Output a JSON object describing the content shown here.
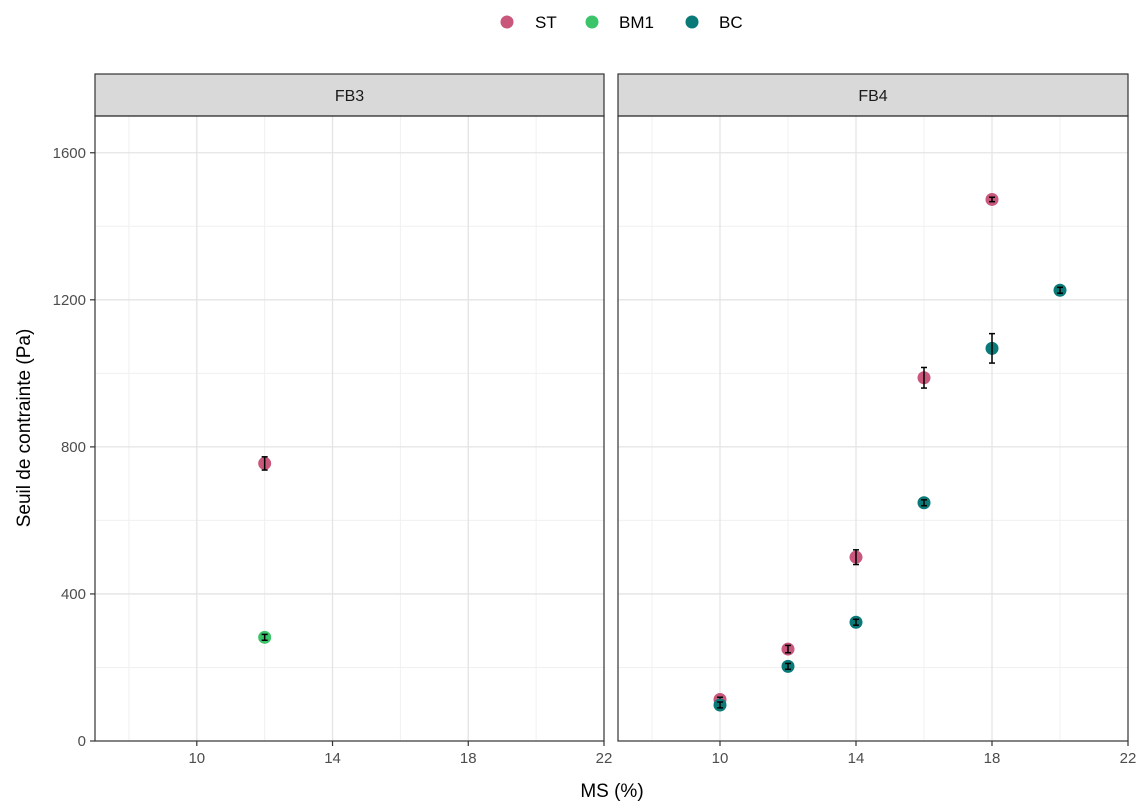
{
  "chart_data": {
    "type": "scatter",
    "xlabel": "MS (%)",
    "ylabel": "Seuil de contrainte (Pa)",
    "xlim": [
      7,
      22
    ],
    "ylim": [
      0,
      1700
    ],
    "x_ticks": [
      10,
      14,
      18,
      22
    ],
    "y_ticks": [
      0,
      400,
      800,
      1200,
      1600
    ],
    "grid": true,
    "legend_position": "top",
    "legend": [
      {
        "name": "ST",
        "color": "#c9577c"
      },
      {
        "name": "BM1",
        "color": "#3cc46a"
      },
      {
        "name": "BC",
        "color": "#0a7a78"
      }
    ],
    "facets": [
      {
        "label": "FB3",
        "series": [
          {
            "name": "ST",
            "points": [
              {
                "x": 12,
                "y": 755,
                "err": 18
              }
            ]
          },
          {
            "name": "BM1",
            "points": [
              {
                "x": 12,
                "y": 282,
                "err": 8
              }
            ]
          },
          {
            "name": "BC",
            "points": []
          }
        ]
      },
      {
        "label": "FB4",
        "series": [
          {
            "name": "ST",
            "points": [
              {
                "x": 10,
                "y": 113,
                "err": 6
              },
              {
                "x": 12,
                "y": 250,
                "err": 10
              },
              {
                "x": 14,
                "y": 500,
                "err": 20
              },
              {
                "x": 16,
                "y": 988,
                "err": 28
              },
              {
                "x": 18,
                "y": 1473,
                "err": 6
              }
            ]
          },
          {
            "name": "BM1",
            "points": []
          },
          {
            "name": "BC",
            "points": [
              {
                "x": 10,
                "y": 98,
                "err": 8
              },
              {
                "x": 12,
                "y": 203,
                "err": 8
              },
              {
                "x": 14,
                "y": 323,
                "err": 8
              },
              {
                "x": 16,
                "y": 648,
                "err": 8
              },
              {
                "x": 18,
                "y": 1068,
                "err": 40
              },
              {
                "x": 20,
                "y": 1226,
                "err": 8
              }
            ]
          }
        ]
      }
    ]
  }
}
